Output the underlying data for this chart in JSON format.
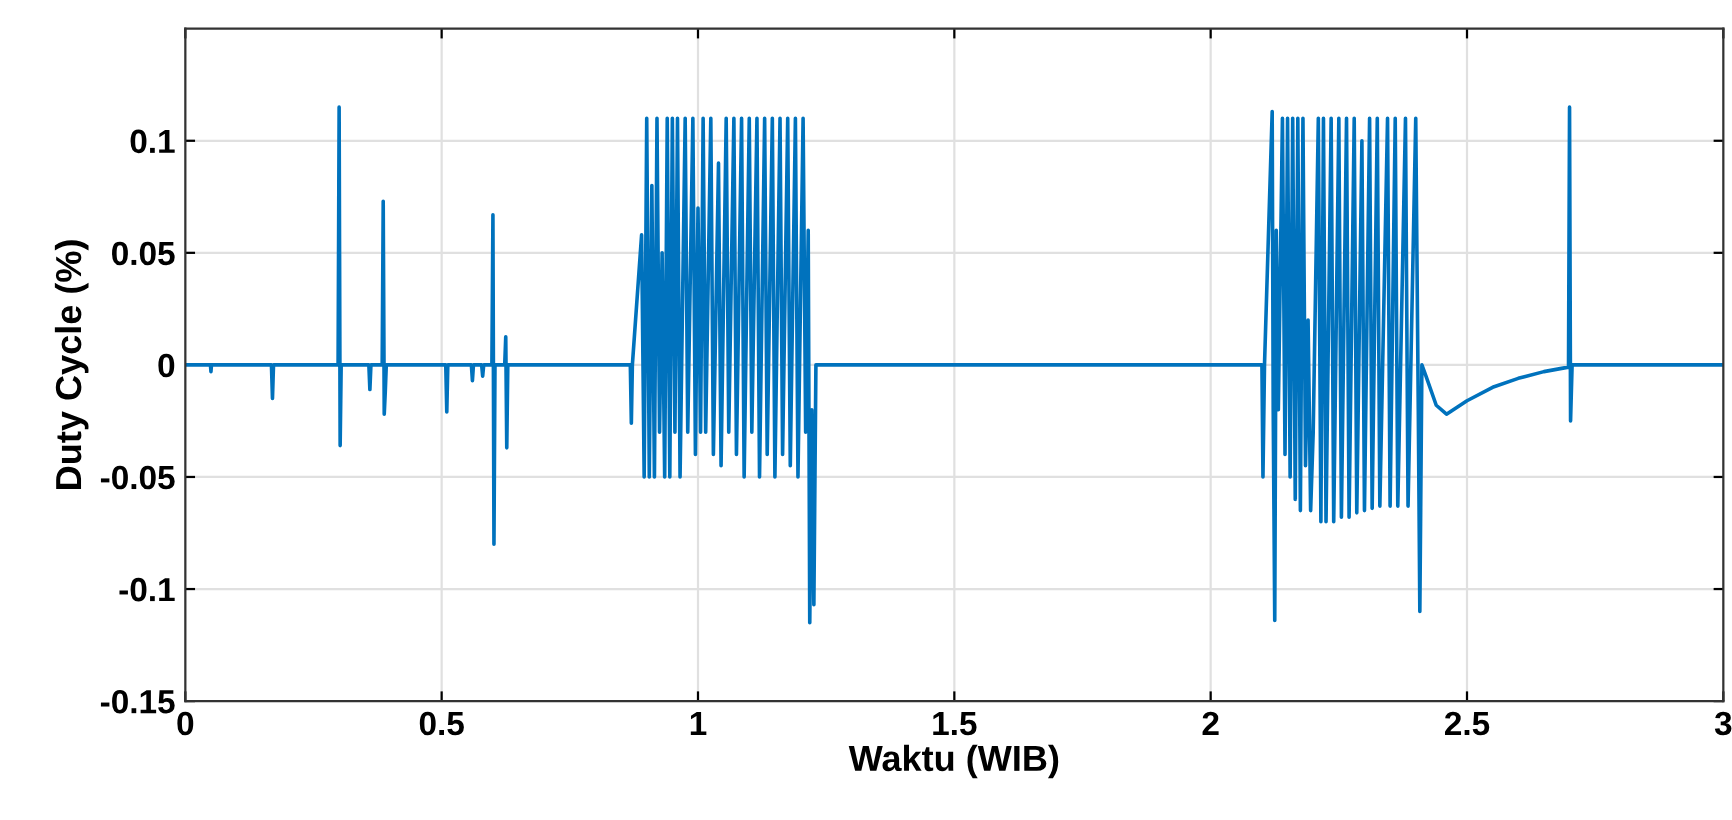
{
  "chart_data": {
    "type": "line",
    "xlabel": "Waktu (WIB)",
    "ylabel": "Duty Cycle (%)",
    "xlim": [
      0,
      3
    ],
    "ylim": [
      -0.15,
      0.15
    ],
    "xticks": [
      0,
      0.5,
      1,
      1.5,
      2,
      2.5,
      3
    ],
    "yticks": [
      -0.15,
      -0.1,
      -0.05,
      0,
      0.05,
      0.1
    ],
    "grid": true,
    "marker": "none",
    "line_style": "solid",
    "series": [
      {
        "color": "#0072bd",
        "x": [
          0,
          0.049,
          0.05,
          0.051,
          0.168,
          0.17,
          0.172,
          0.298,
          0.3,
          0.302,
          0.304,
          0.358,
          0.36,
          0.362,
          0.384,
          0.386,
          0.388,
          0.39,
          0.392,
          0.508,
          0.51,
          0.512,
          0.558,
          0.56,
          0.562,
          0.578,
          0.58,
          0.582,
          0.598,
          0.6,
          0.602,
          0.604,
          0.623,
          0.625,
          0.627,
          0.629,
          0.868,
          0.87,
          0.872,
          0.89,
          0.895,
          0.9,
          0.905,
          0.91,
          0.915,
          0.92,
          0.925,
          0.93,
          0.935,
          0.94,
          0.945,
          0.95,
          0.955,
          0.96,
          0.965,
          0.975,
          0.98,
          0.99,
          0.995,
          1.0,
          1.005,
          1.01,
          1.015,
          1.025,
          1.03,
          1.04,
          1.045,
          1.055,
          1.06,
          1.07,
          1.075,
          1.085,
          1.09,
          1.1,
          1.105,
          1.115,
          1.12,
          1.13,
          1.135,
          1.145,
          1.15,
          1.16,
          1.165,
          1.175,
          1.18,
          1.19,
          1.195,
          1.205,
          1.21,
          1.215,
          1.218,
          1.222,
          1.226,
          1.23,
          2.1,
          2.102,
          2.105,
          2.12,
          2.122,
          2.125,
          2.128,
          2.132,
          2.14,
          2.145,
          2.15,
          2.155,
          2.16,
          2.165,
          2.17,
          2.175,
          2.18,
          2.185,
          2.19,
          2.195,
          2.2,
          2.21,
          2.215,
          2.22,
          2.225,
          2.235,
          2.24,
          2.25,
          2.255,
          2.265,
          2.27,
          2.28,
          2.285,
          2.295,
          2.3,
          2.31,
          2.315,
          2.325,
          2.33,
          2.345,
          2.35,
          2.36,
          2.365,
          2.38,
          2.385,
          2.4,
          2.405,
          2.408,
          2.412,
          2.42,
          2.44,
          2.46,
          2.5,
          2.55,
          2.6,
          2.65,
          2.698,
          2.7,
          2.702,
          2.705,
          3.0
        ],
        "values": [
          0,
          0,
          -0.003,
          0,
          0,
          -0.015,
          0,
          0,
          0.115,
          -0.036,
          0,
          0,
          -0.011,
          0,
          0,
          0.073,
          -0.022,
          -0.012,
          0,
          0,
          -0.021,
          0,
          0,
          -0.007,
          0,
          0,
          -0.005,
          0,
          0,
          0.067,
          -0.08,
          0,
          0,
          0.0125,
          -0.037,
          0,
          0,
          -0.026,
          0,
          0.058,
          -0.05,
          0.11,
          -0.05,
          0.08,
          -0.05,
          0.11,
          -0.03,
          0.05,
          -0.05,
          0.11,
          -0.05,
          0.11,
          -0.03,
          0.11,
          -0.05,
          0.11,
          -0.03,
          0.11,
          -0.04,
          0.07,
          -0.03,
          0.11,
          -0.03,
          0.11,
          -0.04,
          0.09,
          -0.045,
          0.11,
          -0.03,
          0.11,
          -0.04,
          0.11,
          -0.05,
          0.11,
          -0.03,
          0.11,
          -0.05,
          0.11,
          -0.04,
          0.11,
          -0.05,
          0.11,
          -0.04,
          0.11,
          -0.045,
          0.11,
          -0.05,
          0.11,
          -0.03,
          0.06,
          -0.115,
          -0.02,
          -0.107,
          0,
          0,
          -0.05,
          0,
          0.113,
          -0.02,
          -0.114,
          0.06,
          -0.02,
          0.11,
          -0.04,
          0.11,
          -0.05,
          0.11,
          -0.06,
          0.11,
          -0.065,
          0.11,
          -0.045,
          0.02,
          -0.065,
          -0.03,
          0.11,
          -0.07,
          0.11,
          -0.07,
          0.11,
          -0.07,
          0.11,
          -0.068,
          0.11,
          -0.068,
          0.11,
          -0.066,
          0.1,
          -0.065,
          0.11,
          -0.064,
          0.11,
          -0.063,
          0.11,
          -0.063,
          0.11,
          -0.063,
          0.11,
          -0.063,
          0.11,
          -0.02,
          -0.11,
          0,
          -0.005,
          -0.018,
          -0.022,
          -0.016,
          -0.01,
          -0.006,
          -0.003,
          -0.001,
          0.115,
          -0.025,
          0,
          0
        ]
      }
    ]
  }
}
